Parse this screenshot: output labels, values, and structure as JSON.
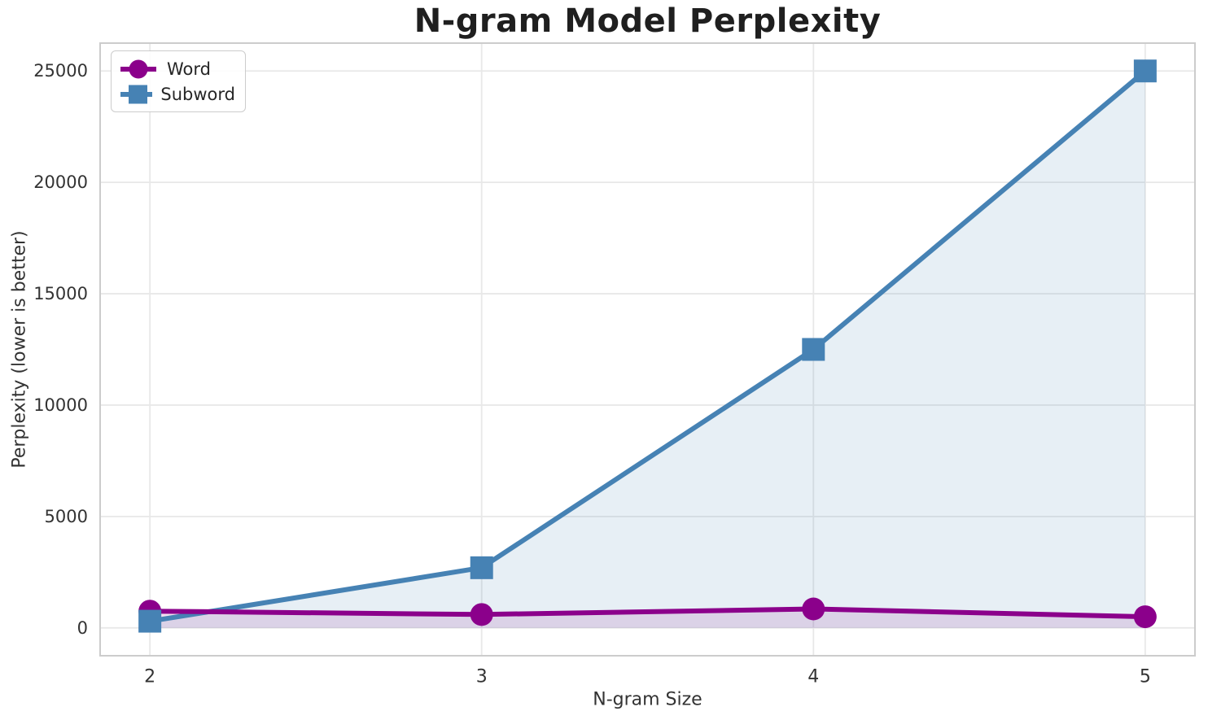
{
  "chart_data": {
    "type": "line",
    "title": "N-gram Model Perplexity",
    "xlabel": "N-gram Size",
    "ylabel": "Perplexity (lower is better)",
    "x": [
      2,
      3,
      4,
      5
    ],
    "series": [
      {
        "name": "Word",
        "marker": "circle",
        "color": "#8B008B",
        "fill_color": "rgba(128,0,128,0.12)",
        "values": [
          750,
          600,
          850,
          500
        ]
      },
      {
        "name": "Subword",
        "marker": "square",
        "color": "#4682B4",
        "fill_color": "rgba(70,130,180,0.13)",
        "values": [
          300,
          2700,
          12500,
          25000
        ]
      }
    ],
    "xticks": [
      2,
      3,
      4,
      5
    ],
    "yticks": [
      0,
      5000,
      10000,
      15000,
      20000,
      25000
    ],
    "xlim": [
      1.85,
      5.15
    ],
    "ylim": [
      -1250,
      26250
    ],
    "grid": true,
    "legend_position": "upper left",
    "area_fill": "to_zero",
    "text_color": "#333333",
    "grid_color": "#e8e8e8",
    "frame_color": "#cccccc"
  }
}
